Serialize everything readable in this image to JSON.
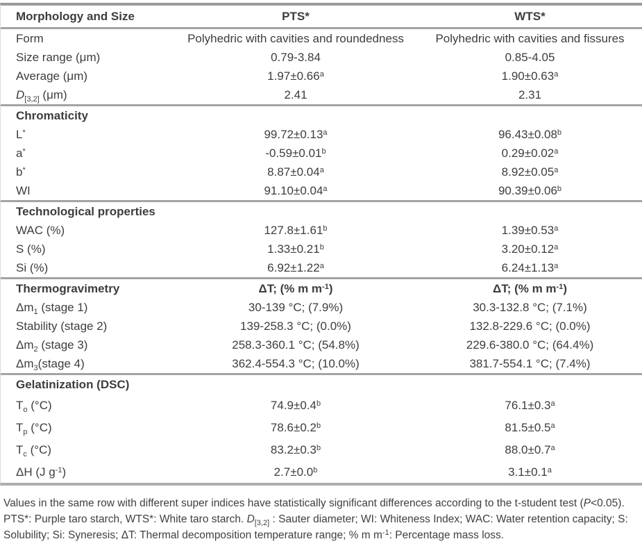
{
  "table": {
    "columns": {
      "label": "Morphology and Size",
      "pts": "PTS*",
      "wts": "WTS*"
    },
    "sections": [
      {
        "title": null,
        "rows": [
          {
            "label": "Form",
            "pts": "Polyhedric with cavities and roundedness",
            "wts": "Polyhedric with cavities and fissures"
          },
          {
            "label": "Size range (μm)",
            "pts": "0.79-3.84",
            "wts": "0.85-4.05"
          },
          {
            "label": "Average (μm)",
            "pts": "1.97±0.66^{a}",
            "wts": "1.90±0.63^{a}"
          },
          {
            "label": "*{D}_{[3,2]} (μm)",
            "pts": "2.41",
            "wts": "2.31"
          }
        ]
      },
      {
        "title": "Chromaticity",
        "pts_header": "",
        "wts_header": "",
        "rows": [
          {
            "label": "L^{*}",
            "pts": "99.72±0.13^{a}",
            "wts": "96.43±0.08^{b}"
          },
          {
            "label": "a^{*}",
            "pts": "-0.59±0.01^{b}",
            "wts": "0.29±0.02^{a}"
          },
          {
            "label": "b^{*}",
            "pts": "8.87±0.04^{a}",
            "wts": "8.92±0.05^{a}"
          },
          {
            "label": "WI",
            "pts": "91.10±0.04^{a}",
            "wts": "90.39±0.06^{b}"
          }
        ]
      },
      {
        "title": "Technological properties",
        "pts_header": "",
        "wts_header": "",
        "rows": [
          {
            "label": "WAC (%)",
            "pts": "127.8±1.61^{b}",
            "wts": "1.39±0.53^{a}"
          },
          {
            "label": "S (%)",
            "pts": "1.33±0.21^{b}",
            "wts": "3.20±0.12^{a}"
          },
          {
            "label": "Si (%)",
            "pts": "6.92±1.22^{a}",
            "wts": "6.24±1.13^{a}"
          }
        ]
      },
      {
        "title": "Thermogravimetry",
        "pts_header": "ΔT; (% m m^{-1})",
        "wts_header": "ΔT; (% m m^{-1})",
        "rows": [
          {
            "label": "Δm_{1} (stage 1)",
            "pts": "30-139 °C; (7.9%)",
            "wts": "30.3-132.8 °C; (7.1%)"
          },
          {
            "label": "Stability (stage 2)",
            "pts": "139-258.3 °C; (0.0%)",
            "wts": "132.8-229.6 °C; (0.0%)"
          },
          {
            "label": "Δm_{2} (stage 3)",
            "pts": "258.3-360.1 °C; (54.8%)",
            "wts": "229.6-380.0 °C; (64.4%)"
          },
          {
            "label": "Δm_{3}(stage 4)",
            "pts": "362.4-554.3 °C; (10.0%)",
            "wts": "381.7-554.1 °C; (7.4%)"
          }
        ]
      },
      {
        "title": "Gelatinization (DSC)",
        "pts_header": "",
        "wts_header": "",
        "rows": [
          {
            "label": "T_{o} (°C)",
            "pts": "74.9±0.4^{b}",
            "wts": "76.1±0.3^{a}"
          },
          {
            "label": "T_{p} (°C)",
            "pts": "78.6±0.2^{b}",
            "wts": "81.5±0.5^{a}"
          },
          {
            "label": "T_{c} (°C)",
            "pts": "83.2±0.3^{b}",
            "wts": "88.0±0.7^{a}"
          },
          {
            "label": "ΔH (J g^{-1})",
            "pts": "2.7±0.0^{b}",
            "wts": "3.1±0.1^{a}"
          }
        ]
      }
    ]
  },
  "footnote": "Values in the same row with different super indices have statistically significant differences according to the t-student test (*{P}<0.05). PTS*: Purple taro starch, WTS*:  White taro starch. *{D}_{[3,2]} : Sauter diameter; WI: Whiteness Index; WAC: Water retention capacity; S: Solubility; Si: Syneresis; ΔT: Thermal decomposition temperature range; % m m^{-1}: Percentage mass loss."
}
